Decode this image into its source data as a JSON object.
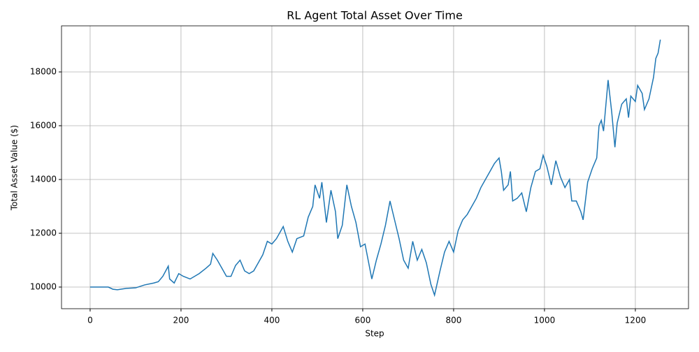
{
  "chart_data": {
    "type": "line",
    "title": "RL Agent Total Asset Over Time",
    "xlabel": "Step",
    "ylabel": "Total Asset Value ($)",
    "x": [
      0,
      40,
      50,
      60,
      80,
      100,
      120,
      140,
      150,
      160,
      172,
      175,
      185,
      195,
      205,
      220,
      240,
      255,
      265,
      270,
      280,
      290,
      300,
      310,
      320,
      330,
      340,
      350,
      360,
      370,
      380,
      390,
      400,
      410,
      425,
      435,
      445,
      455,
      470,
      480,
      490,
      495,
      505,
      510,
      520,
      530,
      540,
      545,
      555,
      565,
      575,
      585,
      595,
      605,
      620,
      630,
      640,
      650,
      660,
      670,
      680,
      690,
      700,
      710,
      720,
      730,
      740,
      750,
      758,
      770,
      780,
      790,
      800,
      810,
      820,
      830,
      840,
      850,
      860,
      870,
      880,
      890,
      900,
      905,
      910,
      920,
      925,
      930,
      940,
      950,
      960,
      970,
      980,
      990,
      997,
      1005,
      1015,
      1025,
      1035,
      1045,
      1055,
      1060,
      1070,
      1080,
      1085,
      1095,
      1105,
      1115,
      1120,
      1125,
      1130,
      1140,
      1148,
      1155,
      1160,
      1170,
      1180,
      1185,
      1190,
      1200,
      1205,
      1215,
      1220,
      1230,
      1240,
      1245,
      1250,
      1255
    ],
    "series": [
      {
        "name": "Total Asset",
        "color": "#1f77b4",
        "values": [
          10000,
          10000,
          9920,
          9900,
          9950,
          9970,
          10080,
          10150,
          10200,
          10400,
          10780,
          10300,
          10150,
          10500,
          10400,
          10300,
          10500,
          10700,
          10850,
          11250,
          11000,
          10700,
          10400,
          10400,
          10800,
          11000,
          10600,
          10500,
          10600,
          10900,
          11200,
          11700,
          11600,
          11800,
          12250,
          11700,
          11300,
          11800,
          11900,
          12600,
          13000,
          13800,
          13300,
          13900,
          12400,
          13600,
          12800,
          11800,
          12300,
          13800,
          13000,
          12400,
          11500,
          11600,
          10300,
          11000,
          11600,
          12300,
          13200,
          12500,
          11800,
          11000,
          10700,
          11700,
          11000,
          11400,
          10900,
          10100,
          9700,
          10600,
          11300,
          11700,
          11300,
          12100,
          12500,
          12700,
          13000,
          13300,
          13700,
          14000,
          14300,
          14600,
          14800,
          14300,
          13600,
          13800,
          14300,
          13200,
          13300,
          13500,
          12800,
          13700,
          14300,
          14400,
          14900,
          14500,
          13800,
          14700,
          14100,
          13700,
          14000,
          13200,
          13200,
          12800,
          12500,
          13900,
          14400,
          14800,
          16000,
          16200,
          15800,
          17700,
          16500,
          15200,
          16100,
          16800,
          17000,
          16300,
          17100,
          16900,
          17500,
          17200,
          16600,
          17000,
          17800,
          18500,
          18700,
          19200
        ]
      }
    ],
    "xlim": [
      -63,
      1317
    ],
    "ylim": [
      9195,
      19714
    ],
    "xticks": [
      0,
      200,
      400,
      600,
      800,
      1000,
      1200
    ],
    "yticks": [
      10000,
      12000,
      14000,
      16000,
      18000
    ],
    "grid": true
  }
}
